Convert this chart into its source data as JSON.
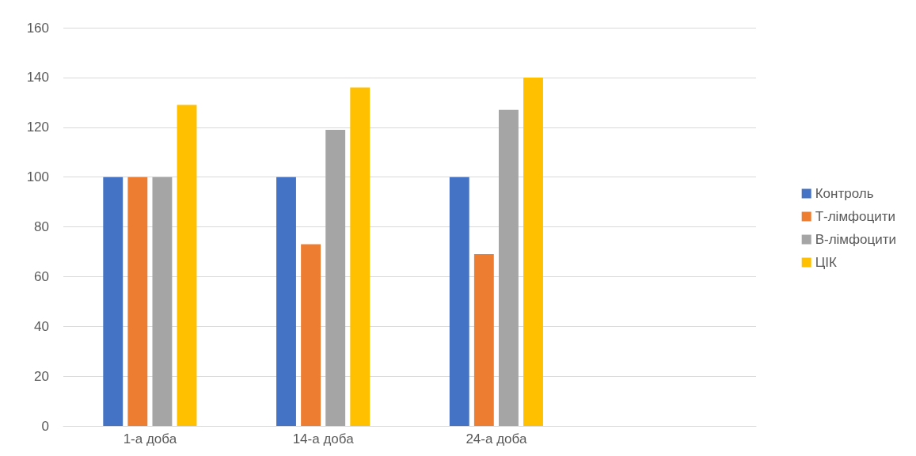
{
  "chart_data": {
    "type": "bar",
    "categories": [
      "1-а доба",
      "14-а доба",
      "24-а доба",
      null
    ],
    "series": [
      {
        "name": "Контроль",
        "color": "#4472c4",
        "values": [
          100,
          100,
          100,
          null
        ]
      },
      {
        "name": "Т-лімфоцити",
        "color": "#ed7d31",
        "values": [
          100,
          73,
          69,
          null
        ]
      },
      {
        "name": "В-лімфоцити",
        "color": "#a5a5a5",
        "values": [
          100,
          119,
          127,
          null
        ]
      },
      {
        "name": "ЦІК",
        "color": "#ffc000",
        "values": [
          129,
          136,
          140,
          null
        ]
      }
    ],
    "ylim": [
      0,
      160
    ],
    "yticks": [
      0,
      20,
      40,
      60,
      80,
      100,
      120,
      140,
      160
    ],
    "grid": "y",
    "legend": "right"
  }
}
